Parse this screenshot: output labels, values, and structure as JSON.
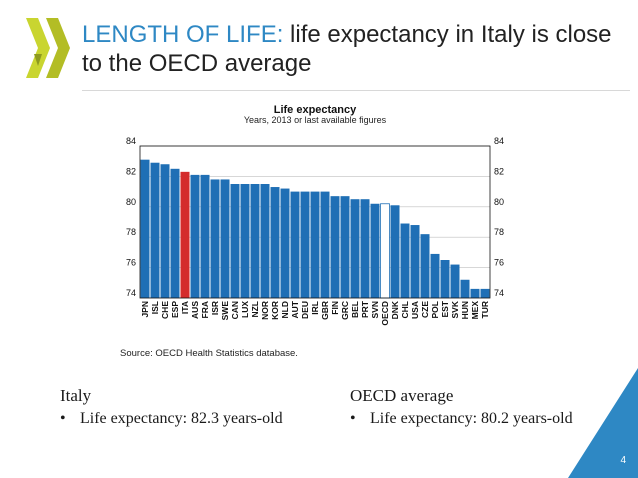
{
  "slide": {
    "title_lead": "LENGTH OF LIFE:",
    "title_rest": " life expectancy in Italy is close to the OECD average",
    "page_number": "4",
    "brand_color": "#2e88c4",
    "logo_icon": "oecd-chevrons-icon"
  },
  "left_column": {
    "heading": "Italy",
    "bullet": "Life expectancy: 82.3 years-old"
  },
  "right_column": {
    "heading": "OECD average",
    "bullet": "Life expectancy: 80.2 years-old"
  },
  "chart_data": {
    "type": "bar",
    "title": "Life expectancy",
    "subtitle": "Years, 2013 or last available figures",
    "source": "Source: OECD Health Statistics database.",
    "categories": [
      "JPN",
      "ISL",
      "CHE",
      "ESP",
      "ITA",
      "AUS",
      "FRA",
      "ISR",
      "SWE",
      "CAN",
      "LUX",
      "NZL",
      "NOR",
      "KOR",
      "NLD",
      "AUT",
      "DEU",
      "IRL",
      "GBR",
      "FIN",
      "GRC",
      "BEL",
      "PRT",
      "SVN",
      "OECD",
      "DNK",
      "CHL",
      "USA",
      "CZE",
      "POL",
      "EST",
      "SVK",
      "HUN",
      "MEX",
      "TUR"
    ],
    "values": [
      83.1,
      82.9,
      82.8,
      82.5,
      82.3,
      82.1,
      82.1,
      81.8,
      81.8,
      81.5,
      81.5,
      81.5,
      81.5,
      81.3,
      81.2,
      81.0,
      81.0,
      81.0,
      81.0,
      80.7,
      80.7,
      80.5,
      80.5,
      80.2,
      80.2,
      80.1,
      78.9,
      78.8,
      78.2,
      76.9,
      76.5,
      76.2,
      75.2,
      74.6,
      74.6
    ],
    "ylim": [
      74,
      84
    ],
    "yticks": [
      "74",
      "76",
      "78",
      "80",
      "82",
      "84"
    ],
    "grid": true,
    "colors": {
      "default": "#1f6fb5",
      "highlight": "#d42c2c",
      "oecd": "#ffffff"
    },
    "highlight": "ITA",
    "average": "OECD"
  }
}
